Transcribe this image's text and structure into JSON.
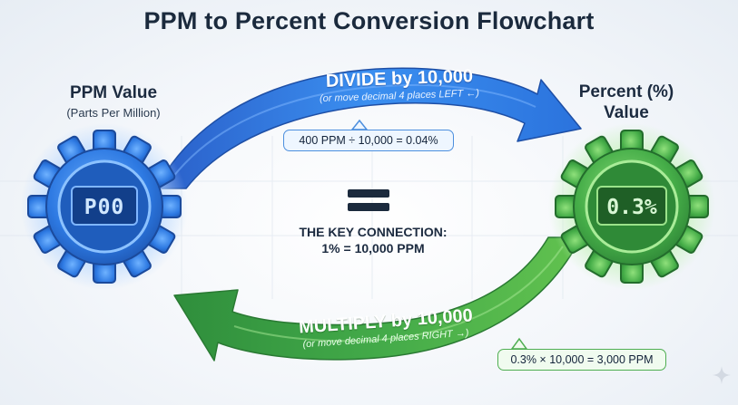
{
  "title": "PPM to Percent Conversion Flowchart",
  "ppm_node": {
    "title": "PPM Value",
    "subtitle": "(Parts Per Million)",
    "display": "P00",
    "icon": "gear-icon"
  },
  "percent_node": {
    "title": "Percent (%) Value",
    "display": "0.3%",
    "icon": "gear-icon"
  },
  "divide_arrow": {
    "label": "DIVIDE by 10,000",
    "sublabel": "(or move decimal 4 places LEFT ←)",
    "example": "400 PPM ÷ 10,000 = 0.04%"
  },
  "multiply_arrow": {
    "label": "MULTIPLY by 10,000",
    "sublabel": "(or move decimal 4 places RIGHT →)",
    "example": "0.3% × 10,000 = 3,000 PPM"
  },
  "key": {
    "symbol_icon": "equals-icon",
    "label": "THE KEY CONNECTION:",
    "value": "1% = 10,000 PPM"
  },
  "colors": {
    "blue": "#2f7ee0",
    "green": "#3aa648",
    "title": "#1b2a3d"
  },
  "corner_icon": "sparkle-icon"
}
